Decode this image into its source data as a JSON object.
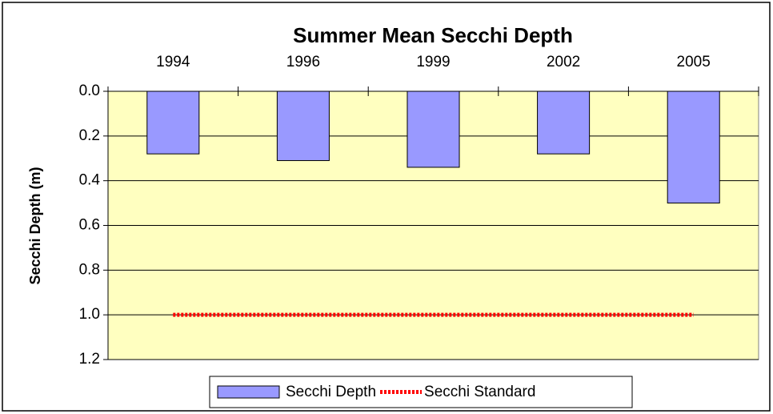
{
  "chart_data": {
    "type": "bar",
    "title": "Summer Mean Secchi Depth",
    "y_label": "Secchi Depth (m)",
    "categories": [
      "1994",
      "1996",
      "1999",
      "2002",
      "2005"
    ],
    "series": [
      {
        "name": "Secchi Depth",
        "type": "bar",
        "color": "#9999ff",
        "values": [
          0.28,
          0.31,
          0.34,
          0.28,
          0.5
        ]
      },
      {
        "name": "Secchi Standard",
        "type": "line",
        "color": "#ff0000",
        "values": [
          1.0,
          1.0,
          1.0,
          1.0,
          1.0
        ]
      }
    ],
    "ylim": [
      0,
      1.2
    ],
    "yticks": [
      {
        "value": 0,
        "label": "0.0"
      },
      0.2,
      0.4,
      0.6,
      0.8,
      {
        "value": 1.0,
        "label": "1.0"
      },
      1.2
    ],
    "y_inverted": true,
    "x_axis_position": "top",
    "grid": true,
    "plot_background": "#ffffc0",
    "legend": "bottom"
  }
}
